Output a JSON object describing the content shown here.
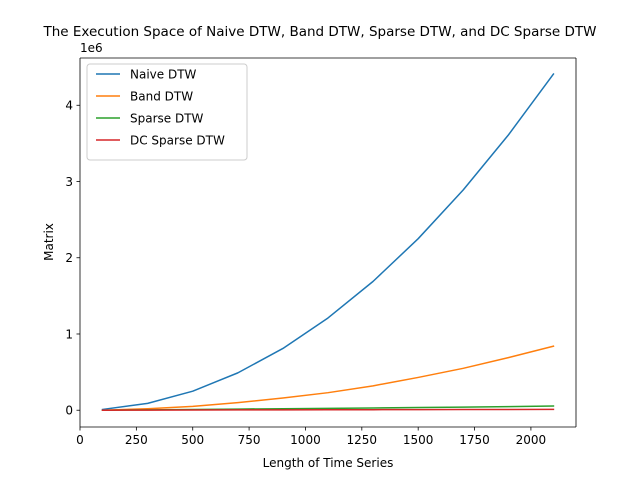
{
  "chart_data": {
    "type": "line",
    "title": "The Execution Space of Naive DTW, Band DTW, Sparse DTW, and DC Sparse DTW",
    "xlabel": "Length of Time Series",
    "ylabel": "Matrix",
    "y_offset_label": "1e6",
    "x": [
      100,
      300,
      500,
      700,
      900,
      1100,
      1300,
      1500,
      1700,
      1900,
      2100
    ],
    "xlim": [
      0,
      2200
    ],
    "ylim": [
      -0.22,
      4.62
    ],
    "y_unit_multiplier": 1000000,
    "xticks": [
      0,
      250,
      500,
      750,
      1000,
      1250,
      1500,
      1750,
      2000
    ],
    "xtick_labels": [
      "0",
      "250",
      "500",
      "750",
      "1000",
      "1250",
      "1500",
      "1750",
      "2000"
    ],
    "yticks": [
      0,
      1,
      2,
      3,
      4
    ],
    "ytick_labels": [
      "0",
      "1",
      "2",
      "3",
      "4"
    ],
    "legend_position": "upper-left",
    "grid": false,
    "series": [
      {
        "name": "Naive DTW",
        "color": "#1f77b4",
        "values": [
          0.01,
          0.09,
          0.25,
          0.49,
          0.81,
          1.21,
          1.69,
          2.25,
          2.89,
          3.61,
          4.41
        ]
      },
      {
        "name": "Band DTW",
        "color": "#ff7f0e",
        "values": [
          0.0,
          0.02,
          0.05,
          0.1,
          0.16,
          0.23,
          0.32,
          0.43,
          0.55,
          0.69,
          0.84
        ]
      },
      {
        "name": "Sparse DTW",
        "color": "#2ca02c",
        "values": [
          0.0,
          0.005,
          0.01,
          0.015,
          0.02,
          0.025,
          0.03,
          0.035,
          0.04,
          0.047,
          0.055
        ]
      },
      {
        "name": "DC Sparse DTW",
        "color": "#d62728",
        "values": [
          0.0,
          0.002,
          0.003,
          0.004,
          0.005,
          0.006,
          0.007,
          0.008,
          0.009,
          0.01,
          0.011
        ]
      }
    ]
  }
}
